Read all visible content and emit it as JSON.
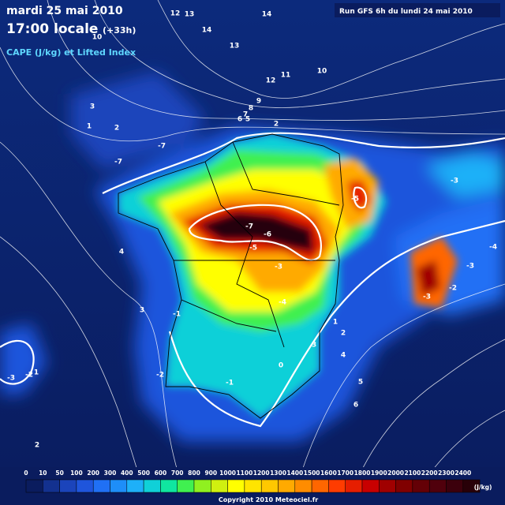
{
  "header": {
    "date": "mardi 25 mai 2010",
    "time": "17:00 locale",
    "lead": "(+33h)",
    "subtitle": "CAPE (J/kg) et Lifted Index",
    "run": "Run GFS 6h du lundi 24 mai 2010"
  },
  "contour_labels": [
    "12",
    "13",
    "14",
    "14",
    "13",
    "10",
    "12",
    "11",
    "10",
    "9",
    "8",
    "7",
    "6",
    "5",
    "2",
    "3",
    "1",
    "2",
    "-7",
    "-7",
    "-7",
    "-6",
    "-5",
    "-5",
    "-3",
    "-4",
    "-3",
    "-3",
    "-3",
    "-2",
    "-2",
    "-2",
    "-3",
    "-1",
    "0",
    "1",
    "2",
    "3",
    "4",
    "5",
    "6",
    "4",
    "3",
    "2",
    "1",
    "-4",
    "-1"
  ],
  "legend": {
    "unit": "(J/kg)",
    "items": [
      {
        "value": 0,
        "color": "#0a1c5e"
      },
      {
        "value": 10,
        "color": "#13318f"
      },
      {
        "value": 50,
        "color": "#1b44bb"
      },
      {
        "value": 100,
        "color": "#1f55dc"
      },
      {
        "value": 200,
        "color": "#2070f5"
      },
      {
        "value": 300,
        "color": "#1e8ef8"
      },
      {
        "value": 400,
        "color": "#1eb0f8"
      },
      {
        "value": 500,
        "color": "#10d0d8"
      },
      {
        "value": 600,
        "color": "#10e6a0"
      },
      {
        "value": 700,
        "color": "#40f050"
      },
      {
        "value": 800,
        "color": "#90f020"
      },
      {
        "value": 900,
        "color": "#d0f010"
      },
      {
        "value": 1000,
        "color": "#ffff00"
      },
      {
        "value": 1100,
        "color": "#ffe400"
      },
      {
        "value": 1200,
        "color": "#ffc800"
      },
      {
        "value": 1300,
        "color": "#ffaa00"
      },
      {
        "value": 1400,
        "color": "#ff8c00"
      },
      {
        "value": 1500,
        "color": "#ff6600"
      },
      {
        "value": 1600,
        "color": "#ff3c00"
      },
      {
        "value": 1700,
        "color": "#e61e00"
      },
      {
        "value": 1800,
        "color": "#c80000"
      },
      {
        "value": 1900,
        "color": "#a00000"
      },
      {
        "value": 2000,
        "color": "#800000"
      },
      {
        "value": 2100,
        "color": "#640006"
      },
      {
        "value": 2200,
        "color": "#50000c"
      },
      {
        "value": 2300,
        "color": "#3c000c"
      },
      {
        "value": 2400,
        "color": "#280008"
      }
    ]
  },
  "footer": {
    "copyright": "Copyright 2010 Meteociel.fr"
  }
}
